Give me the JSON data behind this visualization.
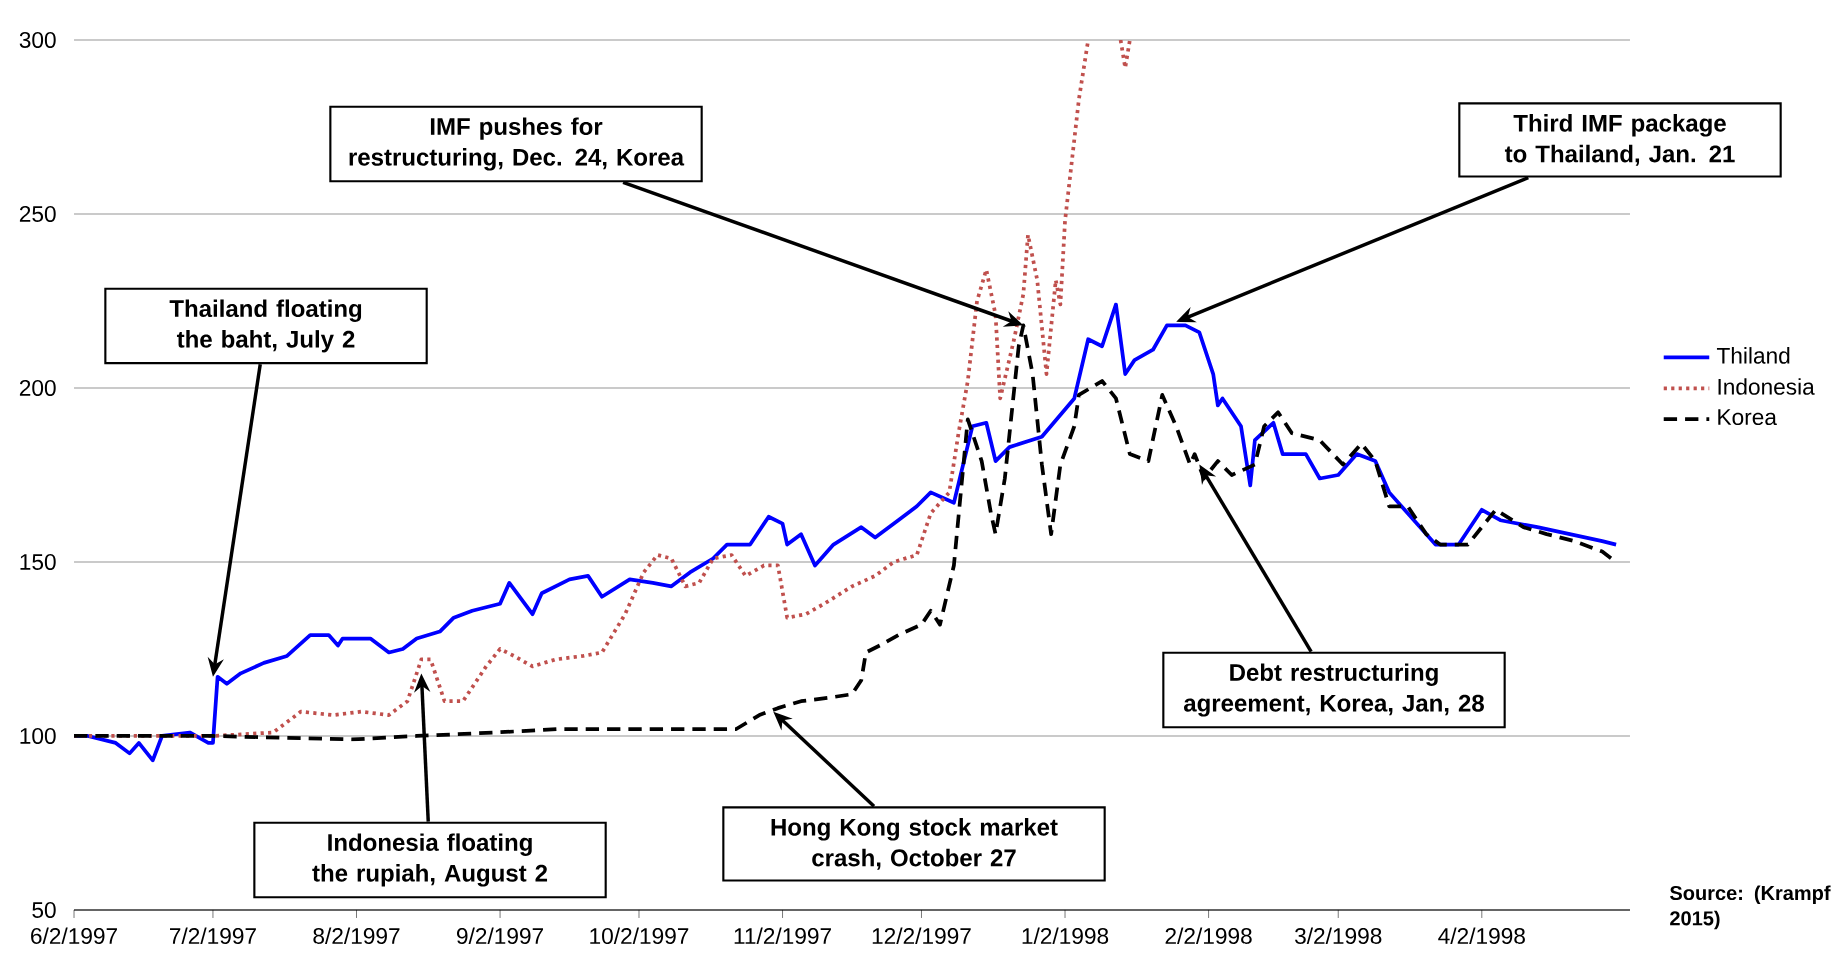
{
  "chart_data": {
    "type": "line",
    "xlim": [
      "1997-06-02",
      "1998-05-04"
    ],
    "ylim": [
      50,
      300
    ],
    "xticks": [
      {
        "value": "1997-06-02",
        "label": "6/2/1997"
      },
      {
        "value": "1997-07-02",
        "label": "7/2/1997"
      },
      {
        "value": "1997-08-02",
        "label": "8/2/1997"
      },
      {
        "value": "1997-09-02",
        "label": "9/2/1997"
      },
      {
        "value": "1997-10-02",
        "label": "10/2/1997"
      },
      {
        "value": "1997-11-02",
        "label": "11/2/1997"
      },
      {
        "value": "1997-12-02",
        "label": "12/2/1997"
      },
      {
        "value": "1998-01-02",
        "label": "1/2/1998"
      },
      {
        "value": "1998-02-02",
        "label": "2/2/1998"
      },
      {
        "value": "1998-03-02",
        "label": "3/2/1998"
      },
      {
        "value": "1998-04-02",
        "label": "4/2/1998"
      }
    ],
    "yticks": [
      50,
      100,
      150,
      200,
      250,
      300
    ],
    "grid": "y",
    "legend": "right",
    "marker": "none",
    "series": [
      {
        "name": "Thiland",
        "color": "#0000ff",
        "line_style": "solid",
        "x": [
          "1997-06-02",
          "1997-06-05",
          "1997-06-11",
          "1997-06-14",
          "1997-06-16",
          "1997-06-19",
          "1997-06-21",
          "1997-06-27",
          "1997-07-01",
          "1997-07-02",
          "1997-07-03",
          "1997-07-05",
          "1997-07-08",
          "1997-07-13",
          "1997-07-18",
          "1997-07-23",
          "1997-07-27",
          "1997-07-29",
          "1997-07-30",
          "1997-08-05",
          "1997-08-09",
          "1997-08-12",
          "1997-08-15",
          "1997-08-20",
          "1997-08-23",
          "1997-08-27",
          "1997-09-02",
          "1997-09-04",
          "1997-09-09",
          "1997-09-11",
          "1997-09-17",
          "1997-09-21",
          "1997-09-24",
          "1997-09-30",
          "1997-10-05",
          "1997-10-09",
          "1997-10-13",
          "1997-10-18",
          "1997-10-21",
          "1997-10-26",
          "1997-10-30",
          "1997-11-02",
          "1997-11-03",
          "1997-11-06",
          "1997-11-09",
          "1997-11-13",
          "1997-11-19",
          "1997-11-22",
          "1997-11-27",
          "1997-12-01",
          "1997-12-04",
          "1997-12-09",
          "1997-12-13",
          "1997-12-16",
          "1997-12-18",
          "1997-12-21",
          "1997-12-28",
          "1998-01-04",
          "1998-01-07",
          "1998-01-10",
          "1998-01-13",
          "1998-01-15",
          "1998-01-17",
          "1998-01-21",
          "1998-01-24",
          "1998-01-28",
          "1998-01-31",
          "1998-02-03",
          "1998-02-04",
          "1998-02-05",
          "1998-02-09",
          "1998-02-11",
          "1998-02-12",
          "1998-02-16",
          "1998-02-18",
          "1998-02-23",
          "1998-02-26",
          "1998-03-02",
          "1998-03-06",
          "1998-03-10",
          "1998-03-13",
          "1998-03-17",
          "1998-03-23",
          "1998-03-28",
          "1998-04-02",
          "1998-04-06",
          "1998-04-14",
          "1998-04-21",
          "1998-04-28",
          "1998-05-01"
        ],
        "values": [
          100,
          100,
          98,
          95,
          98,
          93,
          100,
          101,
          98,
          98,
          117,
          115,
          118,
          121,
          123,
          129,
          129,
          126,
          128,
          128,
          124,
          125,
          128,
          130,
          134,
          136,
          138,
          144,
          135,
          141,
          145,
          146,
          140,
          145,
          144,
          143,
          147,
          151,
          155,
          155,
          163,
          161,
          155,
          158,
          149,
          155,
          160,
          157,
          162,
          166,
          170,
          167,
          189,
          190,
          179,
          183,
          186,
          197,
          214,
          212,
          224,
          204,
          208,
          211,
          218,
          218,
          216,
          204,
          195,
          197,
          189,
          172,
          185,
          190,
          181,
          181,
          174,
          175,
          181,
          179,
          170,
          164,
          155,
          155,
          165,
          162,
          160,
          158,
          156,
          155
        ]
      },
      {
        "name": "Indonesia",
        "color": "#c0504d",
        "line_style": "dotted",
        "x": [
          "1997-06-02",
          "1997-07-02",
          "1997-07-15",
          "1997-07-21",
          "1997-07-28",
          "1997-08-03",
          "1997-08-09",
          "1997-08-13",
          "1997-08-16",
          "1997-08-18",
          "1997-08-21",
          "1997-08-25",
          "1997-08-30",
          "1997-09-02",
          "1997-09-05",
          "1997-09-09",
          "1997-09-14",
          "1997-09-20",
          "1997-09-24",
          "1997-09-29",
          "1997-10-03",
          "1997-10-06",
          "1997-10-09",
          "1997-10-12",
          "1997-10-15",
          "1997-10-18",
          "1997-10-22",
          "1997-10-25",
          "1997-10-29",
          "1997-11-01",
          "1997-11-03",
          "1997-11-07",
          "1997-11-11",
          "1997-11-17",
          "1997-11-22",
          "1997-11-26",
          "1997-12-01",
          "1997-12-04",
          "1997-12-08",
          "1997-12-10",
          "1997-12-12",
          "1997-12-14",
          "1997-12-16",
          "1997-12-18",
          "1997-12-19",
          "1997-12-22",
          "1997-12-24",
          "1997-12-25",
          "1997-12-27",
          "1997-12-29",
          "1997-12-31",
          "1998-01-01",
          "1998-01-02",
          "1998-01-05",
          "1998-01-07",
          "1998-01-08",
          "1998-01-14",
          "1998-01-15",
          "1998-01-16"
        ],
        "values": [
          100,
          100,
          101,
          107,
          106,
          107,
          106,
          110,
          122,
          122,
          110,
          110,
          120,
          125,
          123,
          120,
          122,
          123,
          124,
          135,
          147,
          152,
          151,
          143,
          144,
          151,
          152,
          146,
          149,
          149,
          134,
          135,
          138,
          143,
          146,
          150,
          152,
          164,
          170,
          187,
          202,
          225,
          234,
          221,
          197,
          214,
          227,
          244,
          231,
          204,
          231,
          224,
          248,
          283,
          300,
          null,
          300,
          292,
          300
        ]
      },
      {
        "name": "Korea",
        "color": "#000000",
        "line_style": "dashed",
        "x": [
          "1997-06-02",
          "1997-07-02",
          "1997-08-01",
          "1997-08-15",
          "1997-09-01",
          "1997-09-15",
          "1997-10-01",
          "1997-10-15",
          "1997-10-23",
          "1997-10-28",
          "1997-11-01",
          "1997-11-06",
          "1997-11-12",
          "1997-11-17",
          "1997-11-19",
          "1997-11-20",
          "1997-11-23",
          "1997-11-27",
          "1997-12-02",
          "1997-12-04",
          "1997-12-06",
          "1997-12-09",
          "1997-12-12",
          "1997-12-15",
          "1997-12-17",
          "1997-12-18",
          "1997-12-20",
          "1997-12-23",
          "1997-12-24",
          "1997-12-26",
          "1997-12-28",
          "1997-12-30",
          "1998-01-01",
          "1998-01-04",
          "1998-01-05",
          "1998-01-10",
          "1998-01-13",
          "1998-01-16",
          "1998-01-20",
          "1998-01-23",
          "1998-01-26",
          "1998-01-29",
          "1998-01-30",
          "1998-02-01",
          "1998-02-04",
          "1998-02-07",
          "1998-02-12",
          "1998-02-14",
          "1998-02-17",
          "1998-02-20",
          "1998-02-26",
          "1998-03-03",
          "1998-03-07",
          "1998-03-10",
          "1998-03-13",
          "1998-03-17",
          "1998-03-21",
          "1998-03-24",
          "1998-03-30",
          "1998-04-05",
          "1998-04-11",
          "1998-04-16",
          "1998-04-22",
          "1998-04-28",
          "1998-05-01"
        ],
        "values": [
          100,
          100,
          99,
          100,
          101,
          102,
          102,
          102,
          102,
          106,
          108,
          110,
          111,
          112,
          116,
          124,
          126,
          129,
          132,
          136,
          132,
          149,
          191,
          179,
          164,
          158,
          174,
          212,
          218,
          204,
          178,
          158,
          178,
          189,
          198,
          202,
          197,
          181,
          179,
          198,
          189,
          178,
          181,
          174,
          179,
          175,
          178,
          189,
          193,
          187,
          185,
          178,
          184,
          179,
          166,
          166,
          158,
          155,
          155,
          165,
          160,
          158,
          156,
          153,
          150
        ]
      }
    ],
    "annotations": [
      {
        "text": "Thailand floating the baht, July 2",
        "x": "1997-07-02",
        "y": 117
      },
      {
        "text": "Indonesia floating the rupiah, August 2",
        "x": "1997-08-16",
        "y": 118
      },
      {
        "text": "Hong Kong stock market crash, October 27",
        "x": "1997-10-31",
        "y": 107
      },
      {
        "text": "IMF pushes for restructuring, Dec. 24, Korea",
        "x": "1997-12-24",
        "y": 218
      },
      {
        "text": "Third IMF package to Thailand, Jan. 21",
        "x": "1998-01-26",
        "y": 219
      },
      {
        "text": "Debt restructuring agreement, Korea, Jan, 28",
        "x": "1998-01-31",
        "y": 178
      },
      "Source: (Krampf 2015)"
    ]
  }
}
